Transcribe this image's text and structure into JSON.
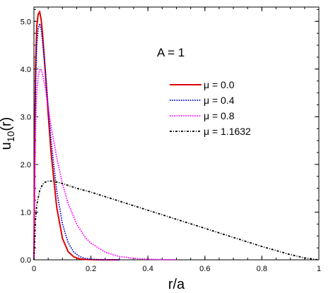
{
  "chart_data": {
    "type": "line",
    "annotation": "A = 1",
    "xlabel": "r/a",
    "ylabel": "u10(r)",
    "ylabel_main": "u",
    "ylabel_sub": "10",
    "ylabel_tail": "(r)",
    "xlim": [
      0,
      1
    ],
    "ylim": [
      0,
      5.3
    ],
    "xticks": [
      0,
      0.2,
      0.4,
      0.6,
      0.8,
      1
    ],
    "xtick_labels": [
      "0",
      "0.2",
      "0.4",
      "0.6",
      "0.8",
      "1"
    ],
    "yticks": [
      0,
      1,
      2,
      3,
      4,
      5
    ],
    "ytick_labels": [
      "0.0",
      "1.0",
      "2.0",
      "3.0",
      "4.0",
      "5.0"
    ],
    "grid": false,
    "legend_position": "upper-right",
    "series": [
      {
        "name": "μ = 0.0",
        "color": "#e00000",
        "style": "solid",
        "x": [
          0,
          0.003,
          0.006,
          0.01,
          0.015,
          0.02,
          0.025,
          0.03,
          0.04,
          0.05,
          0.06,
          0.08,
          0.1,
          0.12,
          0.14,
          0.16,
          0.18,
          0.2,
          0.22,
          0.25,
          0.3
        ],
        "y": [
          0,
          2.6,
          4.1,
          4.9,
          5.15,
          5.2,
          5.05,
          4.75,
          3.95,
          3.05,
          2.25,
          1.1,
          0.45,
          0.17,
          0.06,
          0.02,
          0.008,
          0.003,
          0.001,
          0.0,
          0.0
        ]
      },
      {
        "name": "μ = 0.4",
        "color": "#0000cc",
        "style": "dotted",
        "x": [
          0,
          0.003,
          0.006,
          0.01,
          0.015,
          0.02,
          0.025,
          0.03,
          0.04,
          0.05,
          0.06,
          0.08,
          0.1,
          0.12,
          0.14,
          0.16,
          0.18,
          0.2,
          0.22,
          0.25,
          0.3
        ],
        "y": [
          0,
          2.3,
          3.7,
          4.5,
          4.85,
          4.95,
          4.85,
          4.6,
          3.95,
          3.2,
          2.5,
          1.45,
          0.75,
          0.36,
          0.16,
          0.07,
          0.03,
          0.012,
          0.005,
          0.001,
          0.0
        ]
      },
      {
        "name": "μ = 0.8",
        "color": "#ff00ff",
        "style": "dotted",
        "x": [
          0,
          0.003,
          0.006,
          0.01,
          0.015,
          0.02,
          0.025,
          0.03,
          0.035,
          0.04,
          0.05,
          0.06,
          0.08,
          0.1,
          0.12,
          0.15,
          0.18,
          0.2,
          0.25,
          0.3,
          0.35,
          0.4,
          0.45,
          0.5
        ],
        "y": [
          0,
          1.7,
          2.8,
          3.5,
          3.85,
          3.98,
          4.0,
          3.9,
          3.75,
          3.6,
          3.2,
          2.8,
          2.15,
          1.6,
          1.18,
          0.75,
          0.47,
          0.35,
          0.16,
          0.07,
          0.03,
          0.012,
          0.005,
          0.002
        ]
      },
      {
        "name": "μ = 1.1632",
        "color": "#000000",
        "style": "dashdot",
        "x": [
          0,
          0.005,
          0.01,
          0.02,
          0.03,
          0.04,
          0.05,
          0.06,
          0.07,
          0.08,
          0.1,
          0.15,
          0.2,
          0.3,
          0.4,
          0.5,
          0.6,
          0.7,
          0.8,
          0.9,
          0.95,
          1.0
        ],
        "y": [
          0,
          0.8,
          1.15,
          1.45,
          1.58,
          1.63,
          1.65,
          1.65,
          1.645,
          1.63,
          1.6,
          1.5,
          1.42,
          1.23,
          1.04,
          0.85,
          0.66,
          0.47,
          0.28,
          0.11,
          0.04,
          0.0
        ]
      }
    ]
  }
}
